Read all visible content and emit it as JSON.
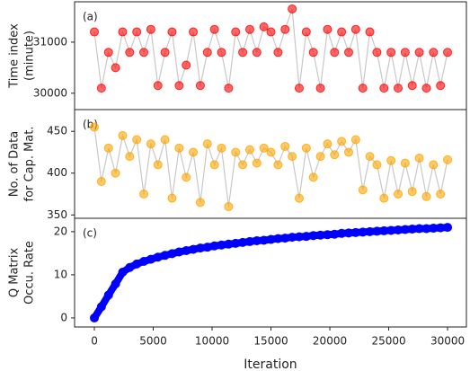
{
  "chart_data": [
    {
      "type": "scatter",
      "label": "(a)",
      "ylabel": [
        "Time index",
        "(minute)"
      ],
      "color": "#ff0000",
      "line_color": "#c8c8c8",
      "xlim": [
        -1680,
        31600
      ],
      "ylim": [
        29680,
        31790
      ],
      "yticks": [
        30000,
        31000
      ],
      "x": [
        0,
        600,
        1200,
        1800,
        2400,
        3000,
        3600,
        4200,
        4800,
        5400,
        6000,
        6600,
        7200,
        7800,
        8400,
        9000,
        9600,
        10200,
        10800,
        11400,
        12000,
        12600,
        13200,
        13800,
        14400,
        15000,
        15600,
        16200,
        16800,
        17400,
        18000,
        18600,
        19200,
        19800,
        20400,
        21000,
        21600,
        22200,
        22800,
        23400,
        24000,
        24600,
        25200,
        25800,
        26400,
        27000,
        27600,
        28200,
        28800,
        29400,
        30000
      ],
      "values": [
        31200,
        30100,
        30800,
        30500,
        31200,
        30800,
        31200,
        30800,
        31250,
        30150,
        30800,
        31200,
        30150,
        30550,
        31200,
        30150,
        30800,
        31250,
        30800,
        30100,
        31200,
        30800,
        31250,
        30800,
        31300,
        31200,
        30800,
        31250,
        31650,
        30100,
        31200,
        30800,
        30100,
        31250,
        30800,
        31200,
        30800,
        31250,
        30100,
        31200,
        30800,
        30100,
        30800,
        30100,
        30800,
        30150,
        30800,
        30100,
        30800,
        30150,
        30800
      ]
    },
    {
      "type": "scatter",
      "label": "(b)",
      "ylabel": [
        "No. of Data",
        "for Cap. Mat."
      ],
      "color": "#ffa500",
      "line_color": "#c8c8c8",
      "xlim": [
        -1680,
        31600
      ],
      "ylim": [
        346,
        476
      ],
      "yticks": [
        350,
        400,
        450
      ],
      "x": [
        0,
        600,
        1200,
        1800,
        2400,
        3000,
        3600,
        4200,
        4800,
        5400,
        6000,
        6600,
        7200,
        7800,
        8400,
        9000,
        9600,
        10200,
        10800,
        11400,
        12000,
        12600,
        13200,
        13800,
        14400,
        15000,
        15600,
        16200,
        16800,
        17400,
        18000,
        18600,
        19200,
        19800,
        20400,
        21000,
        21600,
        22200,
        22800,
        23400,
        24000,
        24600,
        25200,
        25800,
        26400,
        27000,
        27600,
        28200,
        28800,
        29400,
        30000
      ],
      "values": [
        455,
        390,
        430,
        400,
        445,
        420,
        440,
        375,
        435,
        410,
        440,
        370,
        430,
        395,
        425,
        365,
        435,
        410,
        430,
        360,
        425,
        410,
        428,
        412,
        430,
        425,
        410,
        432,
        420,
        370,
        430,
        395,
        420,
        435,
        422,
        438,
        425,
        440,
        380,
        420,
        410,
        370,
        415,
        375,
        412,
        378,
        418,
        372,
        410,
        375,
        416
      ]
    },
    {
      "type": "scatter",
      "label": "(c)",
      "ylabel": [
        "Q Matrix",
        "Occu. Rate"
      ],
      "xlabel": "Iteration",
      "color": "#0000ff",
      "line_color": "#0000ff",
      "xlim": [
        -1680,
        31600
      ],
      "xticks": [
        0,
        5000,
        10000,
        15000,
        20000,
        25000,
        30000
      ],
      "ylim": [
        -2.1,
        23.1
      ],
      "yticks": [
        0,
        10,
        20
      ],
      "x": [
        0,
        600,
        1200,
        1800,
        2400,
        3000,
        3600,
        4200,
        4800,
        5400,
        6000,
        6600,
        7200,
        7800,
        8400,
        9000,
        9600,
        10200,
        10800,
        11400,
        12000,
        12600,
        13200,
        13800,
        14400,
        15000,
        15600,
        16200,
        16800,
        17400,
        18000,
        18600,
        19200,
        19800,
        20400,
        21000,
        21600,
        22200,
        22800,
        23400,
        24000,
        24600,
        25200,
        25800,
        26400,
        27000,
        27600,
        28200,
        28800,
        29400,
        30000
      ],
      "values": [
        0,
        2.6,
        5.3,
        7.9,
        10.6,
        11.7,
        12.5,
        13.1,
        13.6,
        14.1,
        14.5,
        14.9,
        15.3,
        15.6,
        15.9,
        16.2,
        16.4,
        16.7,
        16.9,
        17.1,
        17.3,
        17.5,
        17.7,
        17.9,
        18.0,
        18.2,
        18.4,
        18.5,
        18.7,
        18.8,
        18.9,
        19.1,
        19.2,
        19.3,
        19.4,
        19.6,
        19.7,
        19.8,
        19.9,
        20.0,
        20.1,
        20.2,
        20.3,
        20.4,
        20.5,
        20.6,
        20.7,
        20.7,
        20.8,
        20.9,
        21.0
      ]
    }
  ]
}
